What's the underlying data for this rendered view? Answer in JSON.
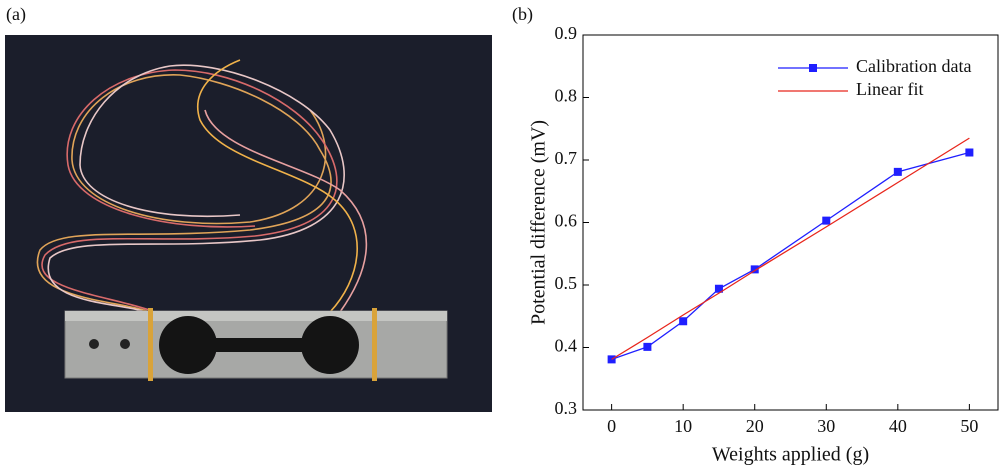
{
  "panels": {
    "a": "(a)",
    "b": "(b)"
  },
  "chart_data": {
    "type": "line",
    "x_label": "Weights applied (g)",
    "y_label": "Potential difference (mV)",
    "x": [
      0,
      5,
      10,
      15,
      20,
      30,
      40,
      50
    ],
    "series": [
      {
        "name": "Calibration data",
        "color": "#1f1fff",
        "marker": "square",
        "values": [
          0.381,
          0.401,
          0.442,
          0.494,
          0.525,
          0.603,
          0.681,
          0.712
        ]
      },
      {
        "name": "Linear fit",
        "color": "#e8261c",
        "marker": "none",
        "values": [
          0.381,
          0.416,
          0.452,
          0.487,
          0.523,
          0.593,
          0.664,
          0.735
        ]
      }
    ],
    "xlim": [
      -4,
      54
    ],
    "xticks": [
      0,
      10,
      20,
      30,
      40,
      50
    ],
    "ylim": [
      0.3,
      0.9
    ],
    "yticks": [
      0.3,
      0.4,
      0.5,
      0.6,
      0.7,
      0.8,
      0.9
    ],
    "legend": "upper right"
  }
}
